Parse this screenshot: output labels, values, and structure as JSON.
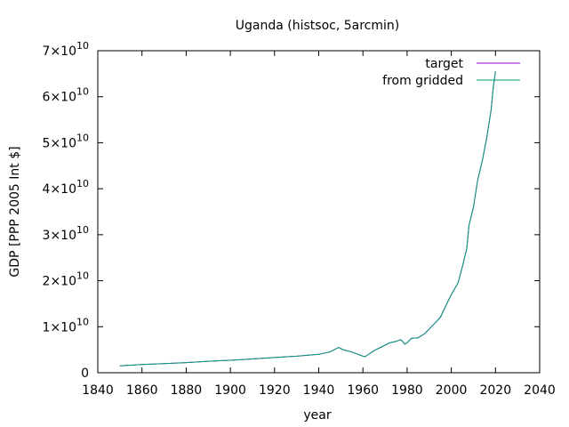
{
  "chart_data": {
    "type": "line",
    "title": "Uganda (histsoc, 5arcmin)",
    "xlabel": "year",
    "ylabel": "GDP [PPP 2005 Int $]",
    "xlim": [
      1840,
      2040
    ],
    "ylim": [
      0,
      70000000000
    ],
    "xticks": [
      "1840",
      "1860",
      "1880",
      "1900",
      "1920",
      "1940",
      "1960",
      "1980",
      "2000",
      "2020",
      "2040"
    ],
    "yticks": [
      {
        "mant": "0",
        "exp": ""
      },
      {
        "mant": "1×10",
        "exp": "10"
      },
      {
        "mant": "2×10",
        "exp": "10"
      },
      {
        "mant": "3×10",
        "exp": "10"
      },
      {
        "mant": "4×10",
        "exp": "10"
      },
      {
        "mant": "5×10",
        "exp": "10"
      },
      {
        "mant": "6×10",
        "exp": "10"
      },
      {
        "mant": "7×10",
        "exp": "10"
      }
    ],
    "grid": false,
    "legend_position": "top-right",
    "series": [
      {
        "name": "target",
        "color": "#9400d3",
        "x": [
          1850,
          1860,
          1870,
          1880,
          1890,
          1900,
          1910,
          1920,
          1930,
          1940,
          1945,
          1949,
          1951,
          1955,
          1960,
          1961,
          1965,
          1970,
          1972,
          1975,
          1977,
          1978,
          1979,
          1980,
          1982,
          1985,
          1988,
          1990,
          1992,
          1995,
          1998,
          2000,
          2003,
          2005,
          2007,
          2008,
          2010,
          2012,
          2014,
          2016,
          2018,
          2019,
          2020
        ],
        "y": [
          1500000000,
          1800000000,
          2000000000,
          2200000000,
          2500000000,
          2700000000,
          3000000000,
          3300000000,
          3600000000,
          4000000000,
          4500000000,
          5500000000,
          5000000000,
          4500000000,
          3600000000,
          3500000000,
          4800000000,
          6000000000,
          6500000000,
          6800000000,
          7200000000,
          6800000000,
          6200000000,
          6500000000,
          7500000000,
          7600000000,
          8500000000,
          9500000000,
          10500000000,
          12000000000,
          15000000000,
          17000000000,
          19500000000,
          23000000000,
          27000000000,
          32000000000,
          36000000000,
          42000000000,
          46000000000,
          51000000000,
          57000000000,
          62000000000,
          65500000000
        ]
      },
      {
        "name": "from gridded",
        "color": "#009e73",
        "x": [
          1850,
          1860,
          1870,
          1880,
          1890,
          1900,
          1910,
          1920,
          1930,
          1940,
          1945,
          1949,
          1951,
          1955,
          1960,
          1961,
          1965,
          1970,
          1972,
          1975,
          1977,
          1978,
          1979,
          1980,
          1982,
          1985,
          1988,
          1990,
          1992,
          1995,
          1998,
          2000,
          2003,
          2005,
          2007,
          2008,
          2010,
          2012,
          2014,
          2016,
          2018,
          2019,
          2020
        ],
        "y": [
          1500000000,
          1800000000,
          2000000000,
          2200000000,
          2500000000,
          2700000000,
          3000000000,
          3300000000,
          3600000000,
          4000000000,
          4500000000,
          5500000000,
          5000000000,
          4500000000,
          3600000000,
          3500000000,
          4800000000,
          6000000000,
          6500000000,
          6800000000,
          7200000000,
          6800000000,
          6200000000,
          6500000000,
          7500000000,
          7600000000,
          8500000000,
          9500000000,
          10500000000,
          12000000000,
          15000000000,
          17000000000,
          19500000000,
          23000000000,
          27000000000,
          32000000000,
          36000000000,
          42000000000,
          46000000000,
          51000000000,
          57000000000,
          62000000000,
          65500000000
        ]
      }
    ]
  }
}
